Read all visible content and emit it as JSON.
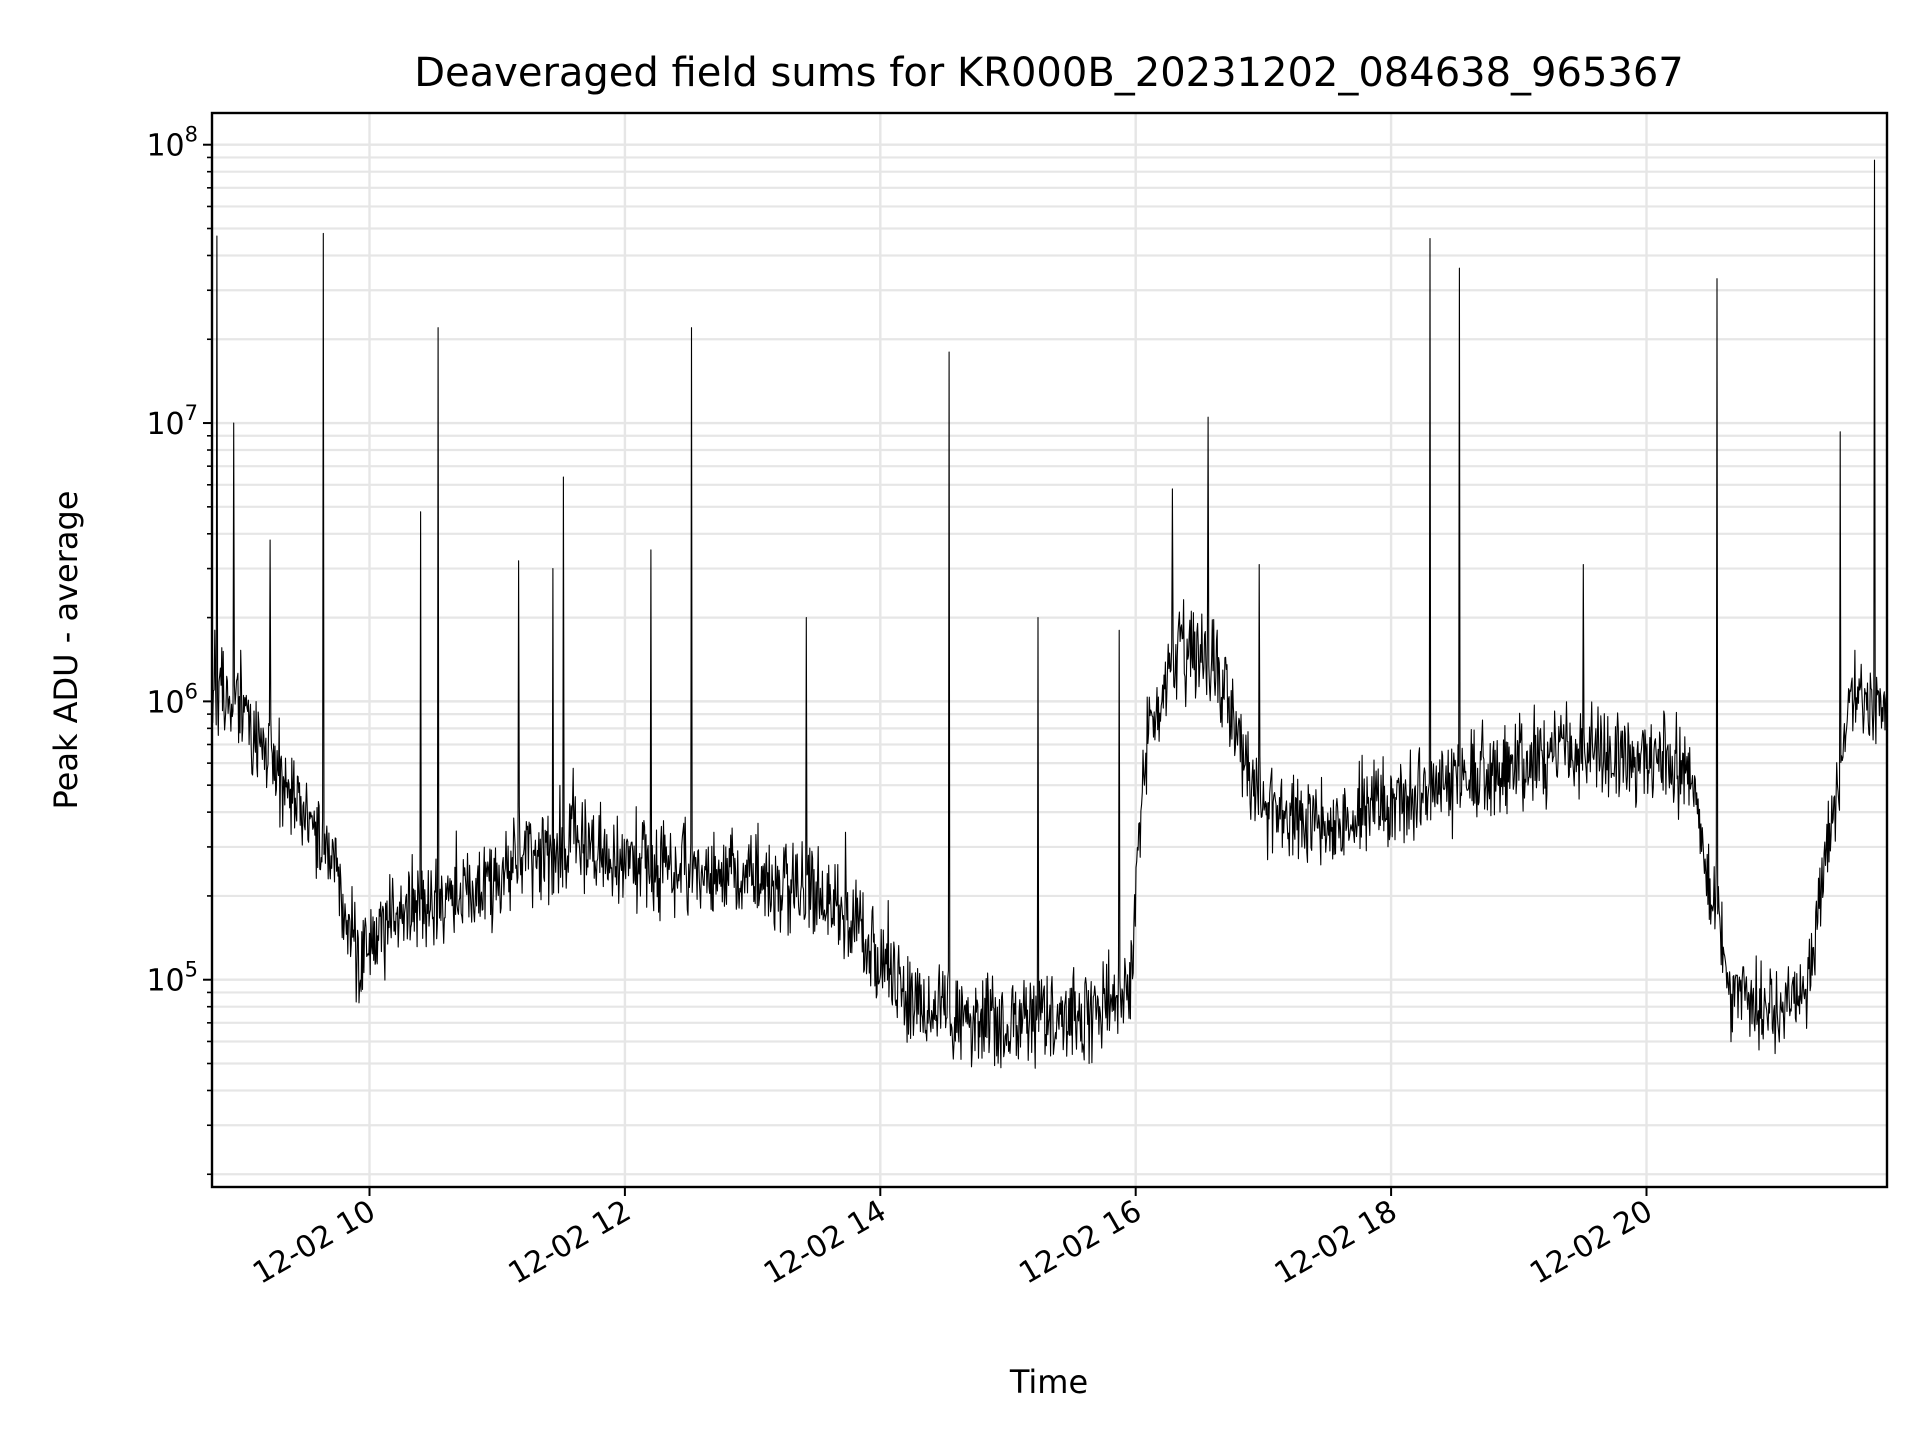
{
  "chart_data": {
    "type": "line",
    "title": "Deaveraged field sums for KR000B_20231202_084638_965367",
    "xlabel": "Time",
    "ylabel": "Peak ADU - average",
    "yscale": "log",
    "xlim": [
      "2023-12-02T08:46",
      "2023-12-02T21:53"
    ],
    "ylim": [
      18000,
      130000000
    ],
    "grid": true,
    "line_color": "#000000",
    "x_ticks": [
      {
        "value": "2023-12-02T10:00",
        "label": "12-02 10"
      },
      {
        "value": "2023-12-02T12:00",
        "label": "12-02 12"
      },
      {
        "value": "2023-12-02T14:00",
        "label": "12-02 14"
      },
      {
        "value": "2023-12-02T16:00",
        "label": "12-02 16"
      },
      {
        "value": "2023-12-02T18:00",
        "label": "12-02 18"
      },
      {
        "value": "2023-12-02T20:00",
        "label": "12-02 20"
      }
    ],
    "y_ticks": [
      {
        "value": 100000,
        "base": "10",
        "exp": "5"
      },
      {
        "value": 1000000,
        "base": "10",
        "exp": "6"
      },
      {
        "value": 10000000,
        "base": "10",
        "exp": "7"
      },
      {
        "value": 100000000,
        "base": "10",
        "exp": "8"
      }
    ],
    "series": [
      {
        "x": [
          "2023-12-02T08:46",
          "2023-12-02T08:55",
          "2023-12-02T09:10",
          "2023-12-02T09:30",
          "2023-12-02T09:45",
          "2023-12-02T09:55",
          "2023-12-02T10:15",
          "2023-12-02T10:45",
          "2023-12-02T11:15",
          "2023-12-02T11:45",
          "2023-12-02T12:15",
          "2023-12-02T12:45",
          "2023-12-02T13:15",
          "2023-12-02T13:45",
          "2023-12-02T14:15",
          "2023-12-02T14:45",
          "2023-12-02T15:15",
          "2023-12-02T15:45",
          "2023-12-02T15:58",
          "2023-12-02T16:05",
          "2023-12-02T16:20",
          "2023-12-02T16:35",
          "2023-12-02T17:00",
          "2023-12-02T17:30",
          "2023-12-02T18:00",
          "2023-12-02T18:30",
          "2023-12-02T19:00",
          "2023-12-02T19:30",
          "2023-12-02T20:00",
          "2023-12-02T20:20",
          "2023-12-02T20:40",
          "2023-12-02T21:00",
          "2023-12-02T21:15",
          "2023-12-02T21:25",
          "2023-12-02T21:35",
          "2023-12-02T21:53"
        ],
        "y": [
          1200000,
          1100000,
          700000,
          400000,
          250000,
          120000,
          180000,
          200000,
          280000,
          300000,
          250000,
          250000,
          220000,
          180000,
          80000,
          70000,
          70000,
          80000,
          100000,
          700000,
          1500000,
          1500000,
          400000,
          350000,
          450000,
          500000,
          600000,
          650000,
          650000,
          550000,
          90000,
          80000,
          80000,
          300000,
          1000000,
          900000
        ],
        "spikes": [
          {
            "x": "2023-12-02T08:48",
            "y": 47000000
          },
          {
            "x": "2023-12-02T08:56",
            "y": 10000000
          },
          {
            "x": "2023-12-02T09:13",
            "y": 3800000
          },
          {
            "x": "2023-12-02T09:38",
            "y": 48000000
          },
          {
            "x": "2023-12-02T10:24",
            "y": 4800000
          },
          {
            "x": "2023-12-02T10:32",
            "y": 22000000
          },
          {
            "x": "2023-12-02T11:10",
            "y": 3200000
          },
          {
            "x": "2023-12-02T11:26",
            "y": 3000000
          },
          {
            "x": "2023-12-02T11:31",
            "y": 6400000
          },
          {
            "x": "2023-12-02T12:12",
            "y": 3500000
          },
          {
            "x": "2023-12-02T12:31",
            "y": 22000000
          },
          {
            "x": "2023-12-02T13:25",
            "y": 2000000
          },
          {
            "x": "2023-12-02T14:32",
            "y": 18000000
          },
          {
            "x": "2023-12-02T15:14",
            "y": 2000000
          },
          {
            "x": "2023-12-02T15:52",
            "y": 1800000
          },
          {
            "x": "2023-12-02T16:17",
            "y": 5800000
          },
          {
            "x": "2023-12-02T16:34",
            "y": 10500000
          },
          {
            "x": "2023-12-02T16:58",
            "y": 3100000
          },
          {
            "x": "2023-12-02T18:18",
            "y": 46000000
          },
          {
            "x": "2023-12-02T18:32",
            "y": 36000000
          },
          {
            "x": "2023-12-02T19:30",
            "y": 3100000
          },
          {
            "x": "2023-12-02T20:33",
            "y": 33000000
          },
          {
            "x": "2023-12-02T21:31",
            "y": 9300000
          },
          {
            "x": "2023-12-02T21:47",
            "y": 88000000
          }
        ]
      }
    ]
  }
}
